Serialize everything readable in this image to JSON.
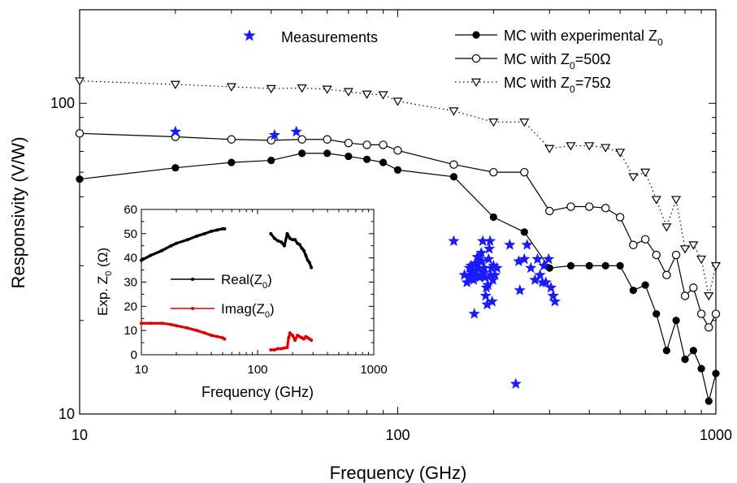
{
  "chart_data": [
    {
      "type": "line",
      "xlabel": "Frequency (GHz)",
      "ylabel": "Responsivity (V/W)",
      "xscale": "log",
      "yscale": "log",
      "xlim": [
        10,
        1000
      ],
      "ylim": [
        10,
        200
      ],
      "xticks": [
        "10",
        "100",
        "1000"
      ],
      "yticks": [
        "10",
        "100"
      ],
      "legend_position": "top-right",
      "series": [
        {
          "name": "MC with experimental Z0",
          "legend_label": {
            "main": "MC with experimental Z",
            "sub": "0"
          },
          "marker": "filled-circle",
          "line": "solid",
          "color": "#000000",
          "x": [
            10,
            20,
            30,
            40,
            50,
            60,
            70,
            80,
            90,
            100,
            150,
            200,
            250,
            300,
            350,
            400,
            450,
            500,
            550,
            600,
            650,
            700,
            750,
            800,
            850,
            900,
            950,
            1000
          ],
          "y": [
            57,
            62,
            64.5,
            65.5,
            69,
            69,
            67.5,
            66,
            64.5,
            61,
            58,
            43,
            38.5,
            29.5,
            30,
            30,
            30,
            30,
            25,
            26,
            21,
            16,
            20,
            15,
            16,
            14,
            11,
            13.5
          ]
        },
        {
          "name": "MC with Z0=50Ω",
          "legend_label": {
            "main": "MC with Z",
            "sub": "0",
            "tail": "=50Ω"
          },
          "marker": "open-circle",
          "line": "solid",
          "color": "#000000",
          "x": [
            10,
            20,
            30,
            40,
            50,
            60,
            70,
            80,
            90,
            100,
            150,
            200,
            250,
            300,
            350,
            400,
            450,
            500,
            550,
            600,
            650,
            700,
            750,
            800,
            850,
            900,
            950,
            1000
          ],
          "y": [
            80,
            78,
            76.5,
            76,
            76.5,
            76.5,
            74.5,
            73.5,
            73.5,
            70.5,
            63.5,
            60,
            60,
            45,
            46.5,
            46.5,
            46,
            43,
            35,
            36.5,
            32.5,
            28,
            32.5,
            24,
            25.5,
            21,
            19,
            21
          ]
        },
        {
          "name": "MC with Z0=75Ω",
          "legend_label": {
            "main": "MC with Z",
            "sub": "0",
            "tail": "=75Ω"
          },
          "marker": "open-triangle-down",
          "line": "dotted",
          "color": "#000000",
          "x": [
            10,
            20,
            30,
            40,
            50,
            60,
            70,
            80,
            90,
            100,
            150,
            200,
            250,
            300,
            350,
            400,
            450,
            500,
            550,
            600,
            650,
            700,
            750,
            800,
            850,
            900,
            950,
            1000
          ],
          "y": [
            118,
            115,
            113,
            111.5,
            112,
            111,
            109,
            107,
            106.5,
            101.5,
            94.5,
            87,
            87,
            71.5,
            73,
            73,
            72,
            69.5,
            58,
            60,
            49,
            40,
            49,
            34,
            35,
            31.5,
            24,
            30
          ]
        },
        {
          "name": "Measurements",
          "marker": "star",
          "line": "none",
          "color": "#1a1aff",
          "x": [
            20,
            41,
            48,
            150,
            162,
            165,
            167,
            168,
            169,
            170,
            171,
            172,
            173,
            174,
            175,
            176,
            177,
            178,
            180,
            181,
            182,
            183,
            184,
            185,
            186,
            187,
            188,
            189,
            190,
            191,
            192,
            193,
            194,
            195,
            196,
            197,
            198,
            199,
            200,
            202,
            205,
            225,
            235,
            240,
            242,
            250,
            255,
            262,
            270,
            275,
            280,
            285,
            288,
            292,
            298,
            303,
            308,
            312
          ],
          "y": [
            81,
            79,
            81,
            36,
            28,
            26.5,
            27.5,
            29.5,
            27.5,
            30,
            28.5,
            29,
            27,
            21,
            30.5,
            29,
            28,
            32,
            29.5,
            27.5,
            31,
            33,
            31,
            36,
            28.5,
            29.5,
            27.5,
            24,
            25.5,
            22.5,
            26,
            31.5,
            34,
            36,
            28,
            29.5,
            23,
            27,
            30,
            28,
            29.5,
            35,
            12.5,
            31,
            25,
            31.5,
            35,
            29.5,
            27,
            31.5,
            28,
            26.5,
            30,
            26.5,
            31.5,
            25.5,
            24,
            23
          ]
        }
      ],
      "inset": {
        "type": "line",
        "xlabel": "Frequency (GHz)",
        "ylabel": {
          "main": "Exp. Z",
          "sub": "0",
          "tail": " (Ω)"
        },
        "xscale": "log",
        "xlim": [
          10,
          1000
        ],
        "ylim": [
          0,
          60
        ],
        "xticks": [
          "10",
          "100",
          "1000"
        ],
        "yticks": [
          "0",
          "10",
          "20",
          "30",
          "40",
          "50",
          "60"
        ],
        "legend_position": "center-left",
        "series": [
          {
            "name": "Real(Z0)",
            "legend_label": {
              "main": "Real(Z",
              "sub": "0",
              "tail": ")"
            },
            "color": "#000000",
            "x": [
              10,
              12,
              15,
              18,
              20,
              25,
              30,
              35,
              40,
              45,
              50,
              52,
              130,
              140,
              150,
              160,
              170,
              180,
              190,
              200,
              210,
              220,
              230,
              240,
              250,
              260,
              270,
              280,
              290
            ],
            "y": [
              39,
              41,
              43,
              45,
              46,
              47.5,
              49,
              50,
              51,
              51.5,
              52,
              52,
              50,
              48,
              47,
              46.5,
              45,
              50,
              48,
              47.5,
              47.5,
              46,
              45.5,
              44,
              43,
              41,
              39,
              38,
              36
            ]
          },
          {
            "name": "Imag(Z0)",
            "legend_label": {
              "main": "Imag(Z",
              "sub": "0",
              "tail": ")"
            },
            "color": "#e00000",
            "x": [
              10,
              12,
              15,
              18,
              20,
              25,
              30,
              35,
              40,
              45,
              50,
              52,
              130,
              140,
              150,
              160,
              170,
              180,
              185,
              190,
              200,
              210,
              220,
              230,
              240,
              250,
              260,
              270,
              280,
              290
            ],
            "y": [
              13,
              13,
              13,
              12.5,
              12,
              11,
              10,
              9,
              8,
              7.5,
              7,
              6.5,
              2,
              2,
              2.5,
              2.5,
              2.8,
              3,
              7,
              9,
              8,
              6,
              8,
              7.5,
              7,
              6.5,
              7.5,
              7,
              6.5,
              6
            ]
          }
        ]
      }
    }
  ]
}
